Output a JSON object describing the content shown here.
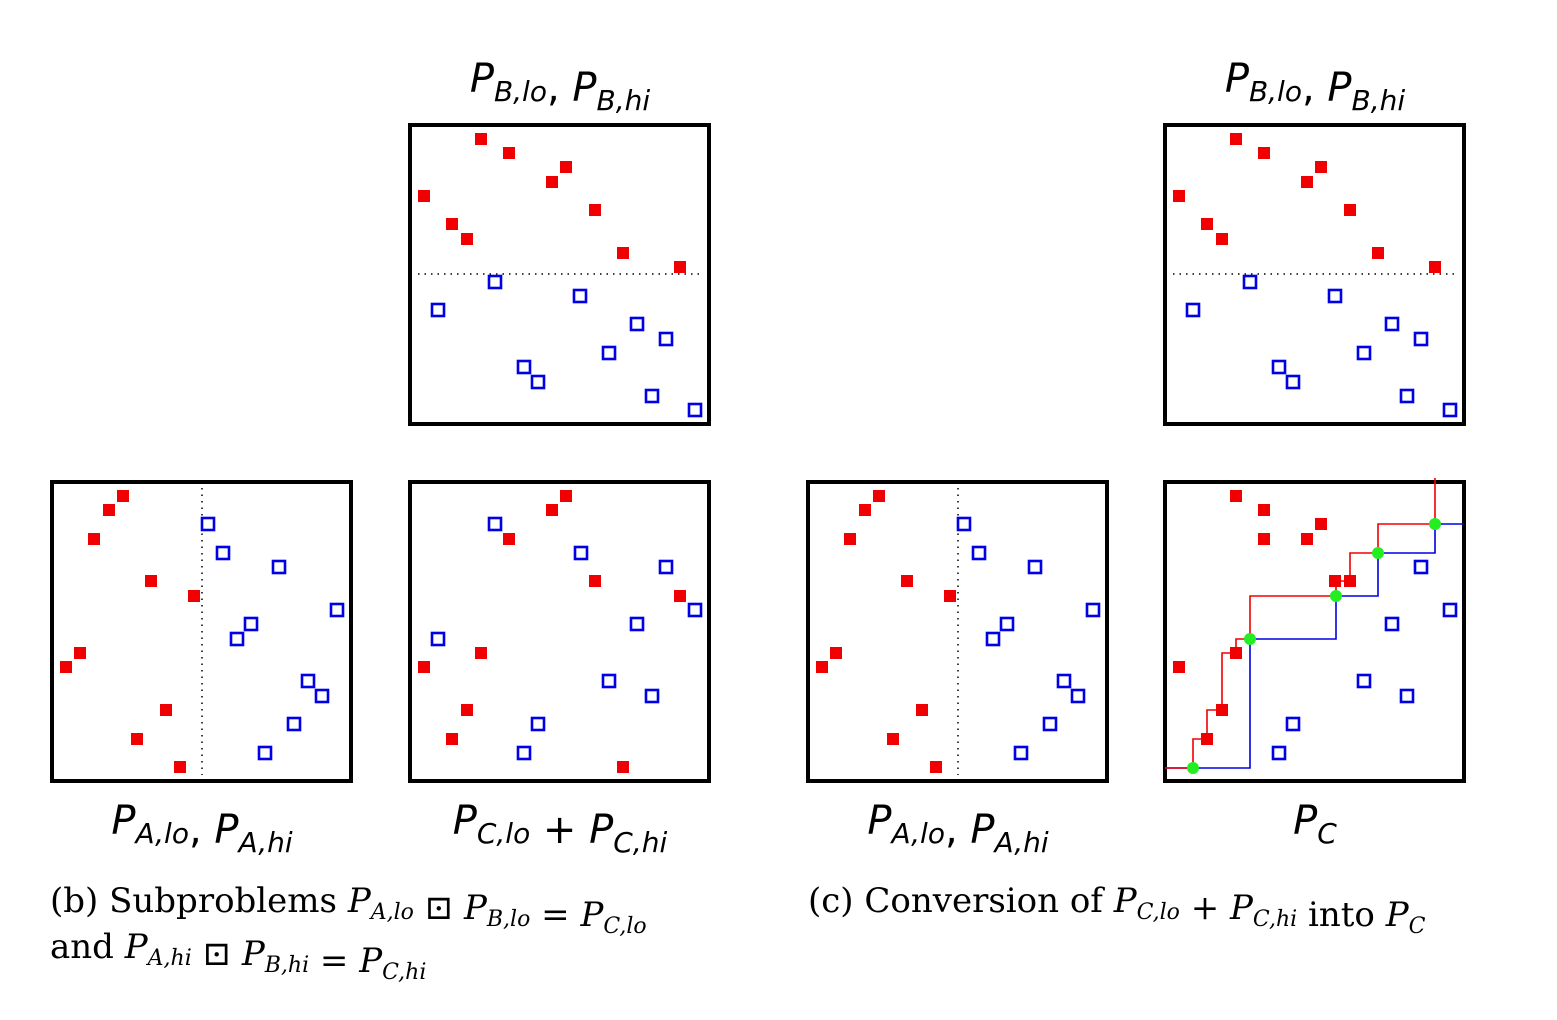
{
  "colors": {
    "red": "#f00000",
    "blue": "#0000e6",
    "green": "#22ee22",
    "frame": "#000000"
  },
  "panels": {
    "b_B": {
      "label": [
        [
          "P",
          "B,lo"
        ],
        [
          ", ",
          ""
        ],
        [
          "P",
          "B,hi"
        ]
      ]
    },
    "b_A": {
      "label": [
        [
          "P",
          "A,lo"
        ],
        [
          ", ",
          ""
        ],
        [
          "P",
          "A,hi"
        ]
      ]
    },
    "b_C": {
      "label": [
        [
          "P",
          "C,lo"
        ],
        [
          " + ",
          ""
        ],
        [
          "P",
          "C,hi"
        ]
      ]
    },
    "c_B": {
      "label": [
        [
          "P",
          "B,lo"
        ],
        [
          ", ",
          ""
        ],
        [
          "P",
          "B,hi"
        ]
      ]
    },
    "c_A": {
      "label": [
        [
          "P",
          "A,lo"
        ],
        [
          ", ",
          ""
        ],
        [
          "P",
          "A,hi"
        ]
      ]
    },
    "c_C": {
      "label": [
        [
          "P",
          "C"
        ]
      ]
    }
  },
  "caption_b": {
    "line1": [
      [
        "r",
        "(b) Subproblems "
      ],
      [
        "m",
        "P",
        "A,lo"
      ],
      [
        "r",
        " ⊡ "
      ],
      [
        "m",
        "P",
        "B,lo"
      ],
      [
        "r",
        " = "
      ],
      [
        "m",
        "P",
        "C,lo"
      ]
    ],
    "line2": [
      [
        "r",
        "and "
      ],
      [
        "m",
        "P",
        "A,hi"
      ],
      [
        "r",
        " ⊡ "
      ],
      [
        "m",
        "P",
        "B,hi"
      ],
      [
        "r",
        " = "
      ],
      [
        "m",
        "P",
        "C,hi"
      ]
    ]
  },
  "caption_c": {
    "line1": [
      [
        "r",
        "(c) Conversion of "
      ],
      [
        "m",
        "P",
        "C,lo"
      ],
      [
        "r",
        " + "
      ],
      [
        "m",
        "P",
        "C,hi"
      ],
      [
        "r",
        " into "
      ],
      [
        "m",
        "P",
        "C"
      ]
    ]
  }
}
